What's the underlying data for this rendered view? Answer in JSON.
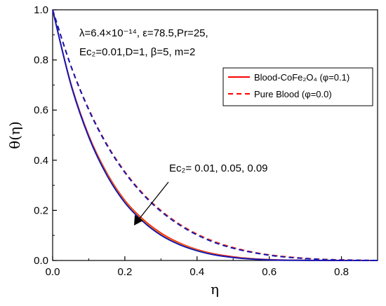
{
  "chart_data": {
    "type": "line",
    "xlabel": "η",
    "ylabel": "θ(η)",
    "xlim": [
      0.0,
      0.9
    ],
    "ylim": [
      0.0,
      1.0
    ],
    "x_ticks": [
      "0.0",
      "0.2",
      "0.4",
      "0.6",
      "0.8"
    ],
    "y_ticks": [
      "0.0",
      "0.2",
      "0.4",
      "0.6",
      "0.8",
      "1.0"
    ],
    "grid": false,
    "legend_position": "top-right",
    "annotations": {
      "params_line1": "λ=6.4×10⁻¹⁴, ε=78.5,Pr=25,",
      "params_line2": "Ec₂=0.01,D=1, β=5, m=2",
      "arrow_label": "Ec₂= 0.01, 0.05, 0.09"
    },
    "legend": [
      {
        "label": "Blood-CoFe₂O₄ (φ=0.1)",
        "color": "#ff0000",
        "dash": "solid"
      },
      {
        "label": "Pure Blood (φ=0.0)",
        "color": "#ff0000",
        "dash": "dashed"
      }
    ],
    "x": [
      0.0,
      0.05,
      0.1,
      0.15,
      0.2,
      0.25,
      0.3,
      0.35,
      0.4,
      0.45,
      0.5,
      0.55,
      0.6,
      0.65,
      0.7,
      0.75,
      0.8,
      0.85,
      0.9
    ],
    "series": [
      {
        "group": "Blood-CoFe₂O₄ (φ=0.1)",
        "color": "#ff0000",
        "dash": "solid",
        "values": [
          1.0,
          0.71,
          0.5,
          0.35,
          0.24,
          0.165,
          0.11,
          0.071,
          0.044,
          0.026,
          0.015,
          0.008,
          0.004,
          0.002,
          0.001,
          0.0005,
          0.0002,
          0.0001,
          0.0
        ]
      },
      {
        "group": "Blood-CoFe₂O₄ (φ=0.1)",
        "color": "#ff8c00",
        "dash": "solid",
        "values": [
          1.0,
          0.708,
          0.497,
          0.346,
          0.236,
          0.161,
          0.106,
          0.068,
          0.042,
          0.024,
          0.013,
          0.007,
          0.003,
          0.0015,
          0.0007,
          0.0003,
          0.0001,
          0.0,
          0.0
        ]
      },
      {
        "group": "Blood-CoFe₂O₄ (φ=0.1)",
        "color": "#1414b4",
        "dash": "solid",
        "values": [
          1.0,
          0.705,
          0.493,
          0.341,
          0.231,
          0.156,
          0.101,
          0.064,
          0.039,
          0.022,
          0.012,
          0.006,
          0.0025,
          0.001,
          0.0005,
          0.0002,
          0.0001,
          0.0,
          0.0
        ]
      },
      {
        "group": "Pure Blood (φ=0.0)",
        "color": "#ff0000",
        "dash": "dashed",
        "values": [
          1.0,
          0.78,
          0.605,
          0.465,
          0.355,
          0.268,
          0.2,
          0.147,
          0.106,
          0.075,
          0.052,
          0.035,
          0.023,
          0.015,
          0.009,
          0.005,
          0.003,
          0.0015,
          0.0
        ]
      },
      {
        "group": "Pure Blood (φ=0.0)",
        "color": "#ff8c00",
        "dash": "dashed",
        "values": [
          1.0,
          0.779,
          0.603,
          0.463,
          0.353,
          0.266,
          0.198,
          0.145,
          0.104,
          0.073,
          0.05,
          0.034,
          0.022,
          0.014,
          0.008,
          0.005,
          0.0025,
          0.001,
          0.0
        ]
      },
      {
        "group": "Pure Blood (φ=0.0)",
        "color": "#1414b4",
        "dash": "dashed",
        "values": [
          1.0,
          0.778,
          0.601,
          0.461,
          0.351,
          0.264,
          0.196,
          0.143,
          0.102,
          0.071,
          0.049,
          0.033,
          0.021,
          0.013,
          0.008,
          0.004,
          0.002,
          0.001,
          0.0
        ]
      }
    ]
  }
}
